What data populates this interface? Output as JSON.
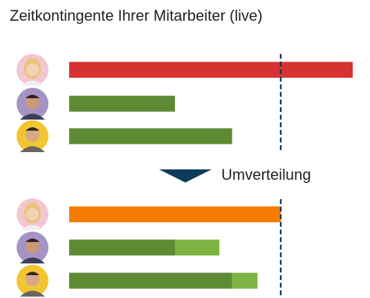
{
  "title": "Zeitkontingente Ihrer Mitarbeiter (live)",
  "annotation": "Umverteilung",
  "chart_data": [
    {
      "type": "bar",
      "orientation": "horizontal",
      "categories": [
        null,
        null,
        null
      ],
      "xlim": [
        0,
        134
      ],
      "reference_line": 100,
      "reference_color": "#0d3b5c",
      "series": [
        {
          "values": [
            134,
            50,
            77
          ],
          "colors": [
            "#d63232",
            "#5e8a34",
            "#5e8a34"
          ]
        }
      ]
    },
    {
      "type": "bar",
      "orientation": "horizontal",
      "stacked": true,
      "categories": [
        null,
        null,
        null
      ],
      "xlim": [
        0,
        134
      ],
      "reference_line": 100,
      "reference_color": "#0d3b5c",
      "series": [
        {
          "values": [
            100,
            50,
            77
          ],
          "colors": [
            "#f57c00",
            "#5e8a34",
            "#5e8a34"
          ]
        },
        {
          "values": [
            null,
            21,
            12
          ],
          "colors": [
            null,
            "#7cb342",
            "#7cb342"
          ]
        }
      ]
    }
  ]
}
